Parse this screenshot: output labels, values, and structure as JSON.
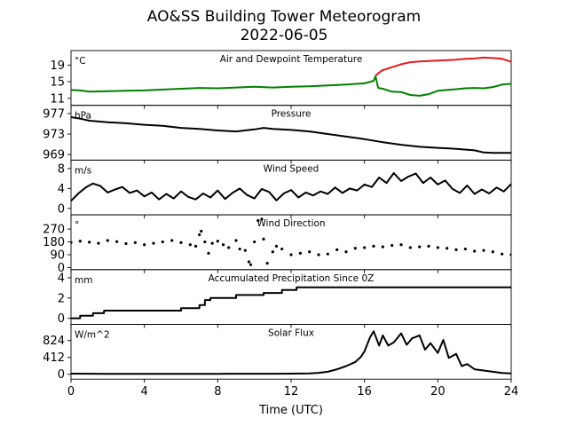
{
  "figure": {
    "title": "AO&SS Building Tower Meteorogram",
    "subtitle": "2022-06-05",
    "xlabel": "Time (UTC)"
  },
  "chart_data": [
    {
      "type": "line",
      "title": "Air and Dewpoint Temperature",
      "ylabel": "°C",
      "xlim": [
        0,
        24
      ],
      "x_ticks": [
        0,
        4,
        8,
        12,
        16,
        20,
        24
      ],
      "ylim": [
        9.3,
        22.5
      ],
      "y_ticks": [
        11,
        15,
        19
      ],
      "series": [
        {
          "color": "#e41a1c",
          "x": [
            16.6,
            16.8,
            17.0,
            17.5,
            18.0,
            18.5,
            19.0,
            19.5,
            20.0,
            20.5,
            21.0,
            21.5,
            22.0,
            22.5,
            23.0,
            23.5,
            24.0
          ],
          "values": [
            16.4,
            17.2,
            17.8,
            18.5,
            19.2,
            19.7,
            19.9,
            20.0,
            20.1,
            20.2,
            20.3,
            20.5,
            20.6,
            20.8,
            20.7,
            20.5,
            19.8
          ]
        },
        {
          "color": "#008000",
          "x": [
            0,
            0.5,
            1,
            2,
            3,
            4,
            5,
            6,
            7,
            8,
            9,
            10,
            11,
            12,
            13,
            14,
            15,
            16,
            16.5,
            16.6,
            16.75,
            17.0,
            17.5,
            18.0,
            18.5,
            19.0,
            19.5,
            20.0,
            20.5,
            21.0,
            21.5,
            22.0,
            22.5,
            23.0,
            23.5,
            24.0
          ],
          "values": [
            13.0,
            12.9,
            12.6,
            12.7,
            12.8,
            12.9,
            13.1,
            13.3,
            13.5,
            13.4,
            13.6,
            13.8,
            13.6,
            13.8,
            13.9,
            14.1,
            14.3,
            14.6,
            15.2,
            16.3,
            13.5,
            13.3,
            12.6,
            12.5,
            11.8,
            11.6,
            12.0,
            12.8,
            13.0,
            13.2,
            13.4,
            13.5,
            13.4,
            13.7,
            14.3,
            14.5
          ]
        }
      ]
    },
    {
      "type": "line",
      "title": "Pressure",
      "ylabel": "hPa",
      "xlim": [
        0,
        24
      ],
      "ylim": [
        967.9,
        978.6
      ],
      "y_ticks": [
        969,
        973,
        977
      ],
      "series": [
        {
          "color": "#000000",
          "x": [
            0,
            0.5,
            1,
            2,
            3,
            4,
            5,
            6,
            7,
            8,
            9,
            10,
            10.5,
            11,
            12,
            13,
            14,
            15,
            16,
            17,
            18,
            19,
            20,
            21,
            22,
            22.5,
            23,
            24
          ],
          "values": [
            976.3,
            976.0,
            975.6,
            975.3,
            975.1,
            974.8,
            974.6,
            974.2,
            974.0,
            973.7,
            973.5,
            973.9,
            974.2,
            974.0,
            973.8,
            973.5,
            973.0,
            972.5,
            972.0,
            971.4,
            970.9,
            970.5,
            970.3,
            970.1,
            969.8,
            969.4,
            969.3,
            969.3
          ]
        }
      ]
    },
    {
      "type": "line",
      "title": "Wind Speed",
      "ylabel": "m/s",
      "xlim": [
        0,
        24
      ],
      "ylim": [
        -1.3,
        9.7
      ],
      "y_ticks": [
        0,
        4,
        8
      ],
      "series": [
        {
          "color": "#000000",
          "x": [
            0,
            0.4,
            0.8,
            1.2,
            1.6,
            2.0,
            2.4,
            2.8,
            3.2,
            3.6,
            4.0,
            4.4,
            4.8,
            5.2,
            5.6,
            6.0,
            6.4,
            6.8,
            7.2,
            7.6,
            8.0,
            8.4,
            8.8,
            9.2,
            9.6,
            10.0,
            10.4,
            10.8,
            11.2,
            11.6,
            12.0,
            12.4,
            12.8,
            13.2,
            13.6,
            14.0,
            14.4,
            14.8,
            15.2,
            15.6,
            16.0,
            16.4,
            16.8,
            17.2,
            17.6,
            18.0,
            18.4,
            18.8,
            19.2,
            19.6,
            20.0,
            20.4,
            20.8,
            21.2,
            21.6,
            22.0,
            22.4,
            22.8,
            23.2,
            23.6,
            24.0
          ],
          "values": [
            1.5,
            3.0,
            4.2,
            5.0,
            4.5,
            3.2,
            3.8,
            4.3,
            3.1,
            3.6,
            2.4,
            3.2,
            1.8,
            2.9,
            2.0,
            3.4,
            2.3,
            1.8,
            3.0,
            2.2,
            3.6,
            1.9,
            3.1,
            4.0,
            2.7,
            2.0,
            3.9,
            3.3,
            1.6,
            3.0,
            3.7,
            2.2,
            3.2,
            2.6,
            3.4,
            2.9,
            4.2,
            3.1,
            4.0,
            3.6,
            4.8,
            4.3,
            6.2,
            5.1,
            7.1,
            5.5,
            6.4,
            7.0,
            5.1,
            6.2,
            4.8,
            5.6,
            3.9,
            3.1,
            4.6,
            2.9,
            3.8,
            3.0,
            4.2,
            3.4,
            4.9
          ]
        }
      ]
    },
    {
      "type": "scatter",
      "title": "Wind Direction",
      "ylabel": "°",
      "xlim": [
        0,
        24
      ],
      "ylim": [
        -15,
        370
      ],
      "y_ticks": [
        0,
        90,
        180,
        270
      ],
      "series": [
        {
          "color": "#000000",
          "x": [
            0,
            0.5,
            1,
            1.5,
            2,
            2.5,
            3,
            3.5,
            4,
            4.5,
            5,
            5.5,
            6,
            6.5,
            6.8,
            7.0,
            7.1,
            7.3,
            7.5,
            7.7,
            8.0,
            8.3,
            8.6,
            9.0,
            9.2,
            9.5,
            9.7,
            9.8,
            10.0,
            10.2,
            10.4,
            10.5,
            10.7,
            11.0,
            11.2,
            11.5,
            12.0,
            12.5,
            13.0,
            13.5,
            14.0,
            14.5,
            15.0,
            15.5,
            16.0,
            16.5,
            17.0,
            17.5,
            18.0,
            18.5,
            19.0,
            19.5,
            20.0,
            20.5,
            21.0,
            21.5,
            22.0,
            22.5,
            23.0,
            23.5,
            24.0
          ],
          "values": [
            175,
            185,
            178,
            170,
            190,
            182,
            168,
            175,
            160,
            170,
            180,
            190,
            175,
            160,
            150,
            230,
            255,
            180,
            100,
            170,
            185,
            160,
            140,
            190,
            130,
            120,
            40,
            20,
            180,
            330,
            340,
            200,
            30,
            110,
            150,
            130,
            90,
            100,
            110,
            90,
            95,
            125,
            110,
            135,
            140,
            150,
            145,
            155,
            160,
            140,
            145,
            150,
            140,
            135,
            125,
            130,
            115,
            120,
            110,
            95,
            90
          ]
        }
      ]
    },
    {
      "type": "line",
      "title": "Accumulated Precipitation Since 0Z",
      "ylabel": "mm",
      "xlim": [
        0,
        24
      ],
      "ylim": [
        -0.6,
        4.8
      ],
      "y_ticks": [
        0,
        2,
        4
      ],
      "series": [
        {
          "color": "#000000",
          "x": [
            0,
            0.5,
            0.5,
            1.2,
            1.2,
            1.8,
            1.8,
            6.0,
            6.0,
            7.0,
            7.0,
            7.3,
            7.3,
            7.6,
            7.6,
            9.0,
            9.0,
            10.5,
            10.5,
            11.5,
            11.5,
            12.3,
            12.3,
            24.0
          ],
          "values": [
            0.0,
            0.0,
            0.25,
            0.25,
            0.5,
            0.5,
            0.76,
            0.76,
            1.0,
            1.0,
            1.3,
            1.3,
            1.8,
            1.8,
            2.0,
            2.0,
            2.3,
            2.3,
            2.5,
            2.5,
            2.8,
            2.8,
            3.05,
            3.05
          ]
        }
      ]
    },
    {
      "type": "line",
      "title": "Solar Flux",
      "ylabel": "W/m^2",
      "xlim": [
        0,
        24
      ],
      "ylim": [
        -120,
        1220
      ],
      "y_ticks": [
        0,
        412,
        824
      ],
      "series": [
        {
          "color": "#000000",
          "x": [
            0,
            1,
            2,
            3,
            4,
            5,
            6,
            7,
            8,
            9,
            10,
            11,
            12,
            13,
            13.5,
            14.0,
            14.5,
            15.0,
            15.5,
            15.8,
            16.0,
            16.3,
            16.5,
            16.8,
            17.0,
            17.3,
            17.6,
            18.0,
            18.3,
            18.6,
            19.0,
            19.3,
            19.6,
            20.0,
            20.3,
            20.6,
            21.0,
            21.3,
            21.6,
            22.0,
            22.5,
            23.0,
            23.5,
            24.0
          ],
          "values": [
            15,
            12,
            10,
            8,
            8,
            8,
            10,
            10,
            10,
            12,
            12,
            12,
            14,
            20,
            35,
            60,
            120,
            200,
            300,
            420,
            560,
            900,
            1050,
            700,
            950,
            700,
            780,
            1000,
            720,
            880,
            950,
            600,
            760,
            520,
            840,
            400,
            500,
            200,
            250,
            120,
            90,
            60,
            30,
            20
          ]
        }
      ]
    }
  ]
}
